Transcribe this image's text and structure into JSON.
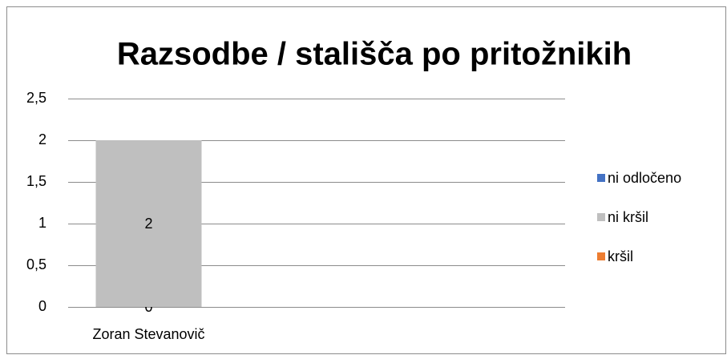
{
  "chart_data": {
    "type": "bar",
    "stacked": true,
    "title": "Razsodbe / stališča po pritožnikih",
    "categories": [
      "Zoran Stevanovič"
    ],
    "series": [
      {
        "name": "ni odločeno",
        "color": "#4472c4",
        "values": [
          null
        ]
      },
      {
        "name": "ni kršil",
        "color": "#bfbfbf",
        "values": [
          2
        ]
      },
      {
        "name": "kršil",
        "color": "#ed7d31",
        "values": [
          0
        ]
      }
    ],
    "ylim": [
      0,
      2.5
    ],
    "yticks": [
      0,
      {
        "value": 0.5,
        "label": "0,5"
      },
      1,
      {
        "value": 1.5,
        "label": "1,5"
      },
      2,
      {
        "value": 2.5,
        "label": "2,5"
      }
    ],
    "grid": true,
    "legend": "right"
  }
}
